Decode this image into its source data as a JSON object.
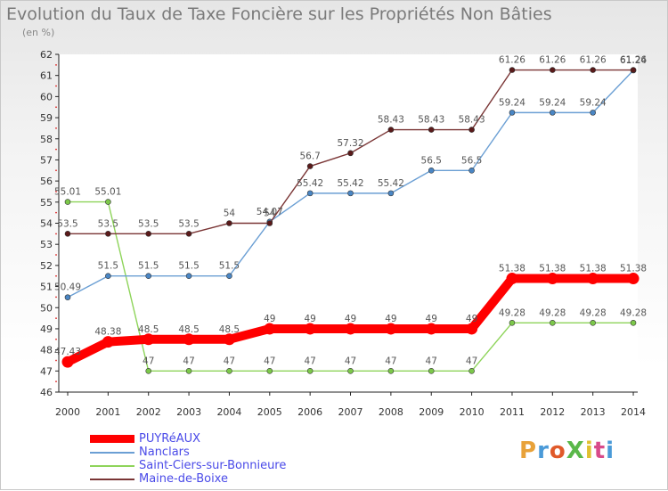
{
  "title": "Evolution du Taux de Taxe Foncière sur les Propriétés Non Bâties",
  "unit": "(en %)",
  "logo": "ProXiti",
  "chart_data": {
    "type": "line",
    "categories": [
      "2000",
      "2001",
      "2002",
      "2003",
      "2004",
      "2005",
      "2006",
      "2007",
      "2008",
      "2009",
      "2010",
      "2011",
      "2012",
      "2013",
      "2014"
    ],
    "ylim": [
      46,
      62
    ],
    "yticks": [
      46,
      47,
      48,
      49,
      50,
      51,
      52,
      53,
      54,
      55,
      56,
      57,
      58,
      59,
      60,
      61,
      62
    ],
    "grid": false,
    "legend_position": "bottom-left",
    "series": [
      {
        "name": "PUYRéAUX",
        "color": "#ff0000",
        "point_color": "#ff0000",
        "values": [
          47.43,
          48.38,
          48.5,
          48.5,
          48.5,
          49,
          49,
          49,
          49,
          49,
          49,
          51.38,
          51.38,
          51.38,
          51.38
        ],
        "labels": [
          "47.43",
          "48.38",
          "48.5",
          "48.5",
          "48.5",
          "49",
          "49",
          "49",
          "49",
          "49",
          "49",
          "51.38",
          "51.38",
          "51.38",
          "51.38"
        ]
      },
      {
        "name": "Nanclars",
        "color": "#6b9fd4",
        "point_color": "#4a86c4",
        "values": [
          50.49,
          51.5,
          51.5,
          51.5,
          51.5,
          54.07,
          55.42,
          55.42,
          55.42,
          56.5,
          56.5,
          59.24,
          59.24,
          59.24,
          61.24
        ],
        "labels": [
          "50.49",
          "51.5",
          "51.5",
          "51.5",
          "51.5",
          "54.07",
          "55.42",
          "55.42",
          "55.42",
          "56.5",
          "56.5",
          "59.24",
          "59.24",
          "59.24",
          "61.24"
        ]
      },
      {
        "name": "Saint-Ciers-sur-Bonnieure",
        "color": "#8ed45a",
        "point_color": "#7cc84a",
        "values": [
          55.01,
          55.01,
          47,
          47,
          47,
          47,
          47,
          47,
          47,
          47,
          47,
          49.28,
          49.28,
          49.28,
          49.28
        ],
        "labels": [
          "55.01",
          "55.01",
          "47",
          "47",
          "47",
          "47",
          "47",
          "47",
          "47",
          "47",
          "47",
          "49.28",
          "49.28",
          "49.28",
          "49.28"
        ]
      },
      {
        "name": "Maine-de-Boixe",
        "color": "#7a3535",
        "point_color": "#5a1a1a",
        "values": [
          53.5,
          53.5,
          53.5,
          53.5,
          54,
          54,
          56.7,
          57.32,
          58.43,
          58.43,
          58.43,
          61.26,
          61.26,
          61.26,
          61.26
        ],
        "labels": [
          "53.5",
          "53.5",
          "53.5",
          "53.5",
          "54",
          "54",
          "56.7",
          "57.32",
          "58.43",
          "58.43",
          "58.43",
          "61.26",
          "61.26",
          "61.26",
          "61.26"
        ]
      }
    ]
  }
}
